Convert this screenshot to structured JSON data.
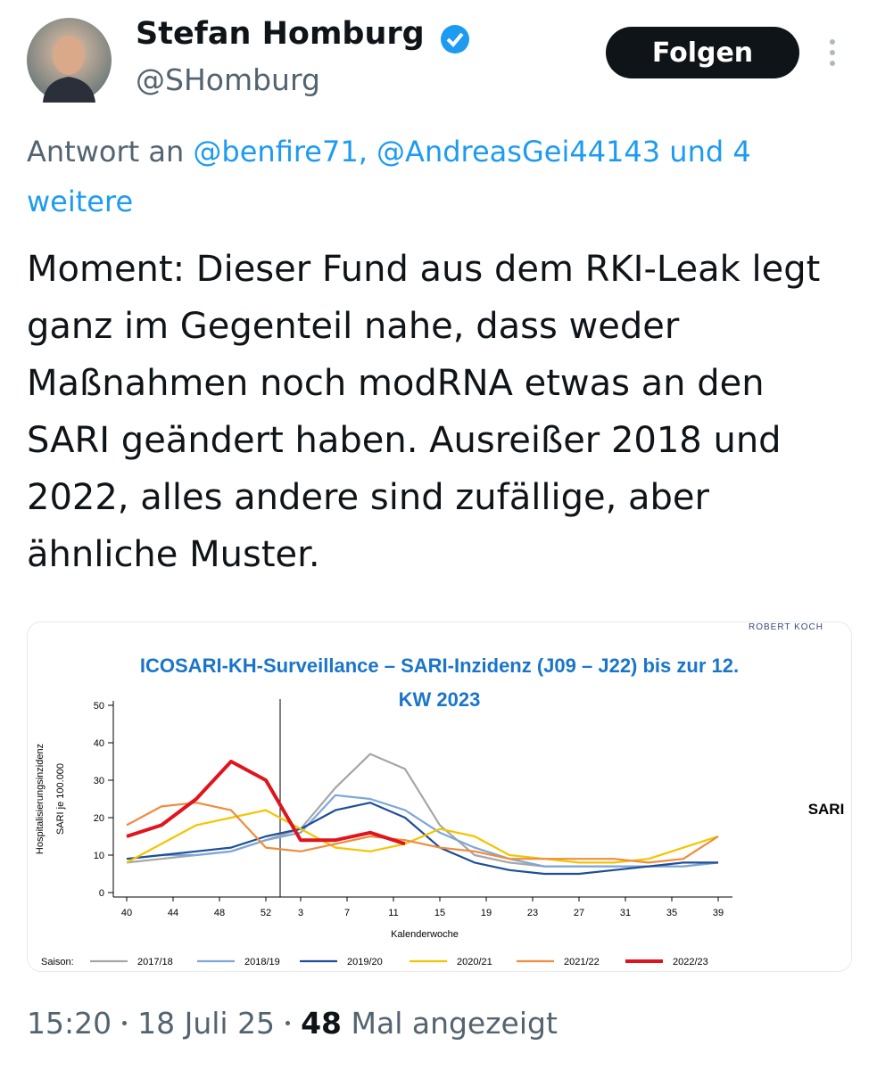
{
  "author": {
    "name": "Stefan Homburg",
    "handle": "@SHomburg"
  },
  "follow_button": "Folgen",
  "reply": {
    "prefix": "Antwort an",
    "to": "@benfire71, @AndreasGei44143 und 4 weitere"
  },
  "text": "Moment: Dieser Fund aus dem RKI-Leak legt ganz im Gegenteil nahe, dass weder Maßnahmen noch modRNA etwas an den SARI geändert haben. Ausreißer 2018 und 2022, alles andere sind zufällige, aber ähnliche Muster.",
  "chart_data": {
    "type": "line",
    "title": "ICOSARI-KH-Surveillance – SARI-Inzidenz (J09 – J22) bis zur 12. KW 2023",
    "source_logo": "ROBERT KOCH",
    "side_label": "SARI",
    "xlabel": "Kalenderwoche",
    "ylabel": [
      "Hospitalisierungsinzidenz",
      "SARI je 100.000"
    ],
    "legend_title": "Saison:",
    "x": [
      0,
      3,
      6,
      9,
      12,
      15,
      18,
      21,
      24,
      27,
      30,
      33,
      36,
      39,
      42,
      45,
      48,
      51
    ],
    "xlim": [
      0,
      51
    ],
    "xticks": [
      {
        "value": 0,
        "label": "40"
      },
      {
        "value": 4,
        "label": "44"
      },
      {
        "value": 8,
        "label": "48"
      },
      {
        "value": 12,
        "label": "52"
      },
      {
        "value": 15,
        "label": "3"
      },
      {
        "value": 19,
        "label": "7"
      },
      {
        "value": 23,
        "label": "11"
      },
      {
        "value": 27,
        "label": "15"
      },
      {
        "value": 31,
        "label": "19"
      },
      {
        "value": 35,
        "label": "23"
      },
      {
        "value": 39,
        "label": "27"
      },
      {
        "value": 43,
        "label": "31"
      },
      {
        "value": 47,
        "label": "35"
      },
      {
        "value": 51,
        "label": "39"
      }
    ],
    "ylim": [
      0,
      50
    ],
    "yticks": [
      0,
      10,
      20,
      30,
      40,
      50
    ],
    "series": [
      {
        "name": "2017/18",
        "color": "#a6a6a6",
        "values": [
          8,
          9,
          10,
          11,
          14,
          17,
          28,
          37,
          33,
          18,
          10,
          8,
          7,
          7,
          7,
          7,
          7,
          8
        ]
      },
      {
        "name": "2018/19",
        "color": "#7da7d9",
        "values": [
          9,
          10,
          10,
          11,
          14,
          16,
          26,
          25,
          22,
          16,
          12,
          9,
          7,
          7,
          7,
          7,
          7,
          8
        ]
      },
      {
        "name": "2019/20",
        "color": "#1f4e99",
        "values": [
          9,
          10,
          11,
          12,
          15,
          17,
          22,
          24,
          20,
          12,
          8,
          6,
          5,
          5,
          6,
          7,
          8,
          8
        ]
      },
      {
        "name": "2020/21",
        "color": "#f5c400",
        "values": [
          8,
          13,
          18,
          20,
          22,
          17,
          12,
          11,
          13,
          17,
          15,
          10,
          9,
          8,
          8,
          9,
          12,
          15
        ]
      },
      {
        "name": "2021/22",
        "color": "#f08c3c",
        "values": [
          18,
          23,
          24,
          22,
          12,
          11,
          13,
          15,
          14,
          12,
          11,
          9,
          9,
          9,
          9,
          8,
          9,
          15
        ]
      },
      {
        "name": "2022/23",
        "color": "#e0141c",
        "values": [
          15,
          18,
          25,
          35,
          30,
          14,
          14,
          16,
          13,
          null,
          null,
          null,
          null,
          null,
          null,
          null,
          null,
          null
        ]
      }
    ]
  },
  "footer": {
    "time": "15:20",
    "date": "18 Juli 25",
    "views": 48,
    "views_label": "Mal angezeigt"
  }
}
